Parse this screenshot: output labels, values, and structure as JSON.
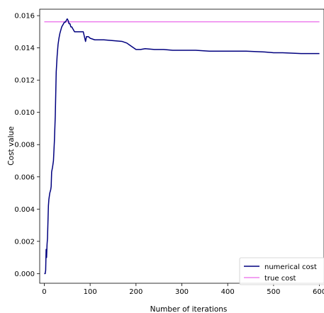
{
  "chart_data": {
    "type": "line",
    "title": "",
    "xlabel": "Number of iterations",
    "ylabel": "Cost value",
    "xlim": [
      -10,
      610
    ],
    "ylim": [
      -0.0006,
      0.0164
    ],
    "x_ticks": [
      0,
      100,
      200,
      300,
      400,
      500,
      600
    ],
    "x_tick_labels": [
      "0",
      "100",
      "200",
      "300",
      "400",
      "500",
      "600"
    ],
    "y_ticks": [
      0.0,
      0.002,
      0.004,
      0.006,
      0.008,
      0.01,
      0.012,
      0.014,
      0.016
    ],
    "y_tick_labels": [
      "0.000",
      "0.002",
      "0.004",
      "0.006",
      "0.008",
      "0.010",
      "0.012",
      "0.014",
      "0.016"
    ],
    "grid": false,
    "legend_position": "lower-right",
    "series": [
      {
        "name": "numerical cost",
        "color": "#00007f",
        "x": [
          0,
          2,
          3,
          4,
          5,
          6,
          7,
          8,
          9,
          10,
          12,
          14,
          15,
          16,
          18,
          20,
          22,
          24,
          26,
          28,
          30,
          32,
          34,
          36,
          38,
          40,
          42,
          44,
          46,
          48,
          50,
          52,
          54,
          56,
          58,
          60,
          62,
          64,
          66,
          70,
          75,
          80,
          85,
          90,
          92,
          94,
          96,
          100,
          110,
          130,
          150,
          170,
          180,
          185,
          190,
          195,
          200,
          210,
          220,
          240,
          260,
          280,
          300,
          330,
          360,
          400,
          440,
          480,
          500,
          520,
          560,
          600
        ],
        "y": [
          0.0,
          0.0,
          0.0002,
          0.0015,
          0.001,
          0.0018,
          0.0022,
          0.0032,
          0.0042,
          0.0046,
          0.005,
          0.0052,
          0.0054,
          0.0063,
          0.0066,
          0.007,
          0.0082,
          0.0098,
          0.0125,
          0.0135,
          0.0142,
          0.0146,
          0.0149,
          0.0151,
          0.0153,
          0.0154,
          0.0155,
          0.0156,
          0.0156,
          0.0157,
          0.0158,
          0.0157,
          0.0155,
          0.0155,
          0.0153,
          0.0153,
          0.0152,
          0.0151,
          0.015,
          0.015,
          0.015,
          0.015,
          0.015,
          0.0144,
          0.0147,
          0.0147,
          0.0147,
          0.0146,
          0.0145,
          0.0145,
          0.01445,
          0.0144,
          0.0143,
          0.0142,
          0.0141,
          0.014,
          0.0139,
          0.0139,
          0.01395,
          0.0139,
          0.0139,
          0.01385,
          0.01385,
          0.01385,
          0.0138,
          0.0138,
          0.0138,
          0.01375,
          0.0137,
          0.0137,
          0.01365,
          0.01365
        ]
      },
      {
        "name": "true cost",
        "color": "#ee82ee",
        "x": [
          0,
          600
        ],
        "y": [
          0.01562,
          0.01562
        ]
      }
    ]
  }
}
